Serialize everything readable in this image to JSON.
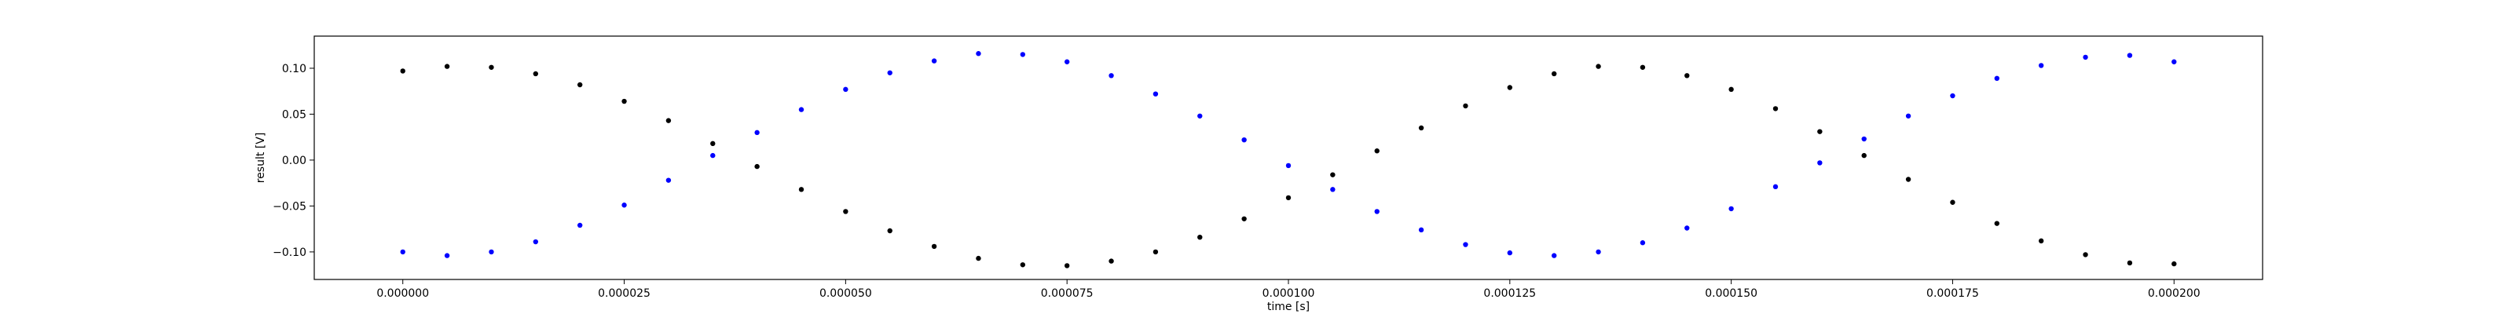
{
  "chart_data": {
    "type": "scatter",
    "title": "",
    "xlabel": "time [s]",
    "ylabel": "result [V]",
    "xlim": [
      -1e-05,
      0.00021
    ],
    "ylim": [
      -0.13,
      0.135
    ],
    "grid": false,
    "x_ticks": [
      0,
      2.5e-05,
      5e-05,
      7.5e-05,
      0.0001,
      0.000125,
      0.00015,
      0.000175,
      0.0002
    ],
    "x_tick_labels": [
      "0.000000",
      "0.000025",
      "0.000050",
      "0.000075",
      "0.000100",
      "0.000125",
      "0.000150",
      "0.000175",
      "0.000200"
    ],
    "y_ticks": [
      0.1,
      0.05,
      0.0,
      -0.05,
      -0.1
    ],
    "y_tick_labels": [
      "0.10",
      "0.05",
      "0.00",
      "−0.05",
      "−0.10"
    ],
    "series": [
      {
        "color": "#000000",
        "x": [
          0,
          5e-06,
          1e-05,
          1.5e-05,
          2e-05,
          2.5e-05,
          3e-05,
          3.5e-05,
          4e-05,
          4.5e-05,
          5e-05,
          5.5e-05,
          6e-05,
          6.5e-05,
          7e-05,
          7.5e-05,
          8e-05,
          8.5e-05,
          9e-05,
          9.5e-05,
          0.0001,
          0.000105,
          0.00011,
          0.000115,
          0.00012,
          0.000125,
          0.00013,
          0.000135,
          0.00014,
          0.000145,
          0.00015,
          0.000155,
          0.00016,
          0.000165,
          0.00017,
          0.000175,
          0.00018,
          0.000185,
          0.00019,
          0.000195,
          0.0002
        ],
        "y": [
          0.097,
          0.102,
          0.101,
          0.094,
          0.082,
          0.064,
          0.043,
          0.018,
          -0.007,
          -0.032,
          -0.056,
          -0.077,
          -0.094,
          -0.107,
          -0.114,
          -0.115,
          -0.11,
          -0.1,
          -0.084,
          -0.064,
          -0.041,
          -0.016,
          0.01,
          0.035,
          0.059,
          0.079,
          0.094,
          0.102,
          0.101,
          0.092,
          0.077,
          0.056,
          0.031,
          0.005,
          -0.021,
          -0.046,
          -0.069,
          -0.088,
          -0.103,
          -0.112,
          -0.113
        ]
      },
      {
        "color": "#0000ff",
        "x": [
          0,
          5e-06,
          1e-05,
          1.5e-05,
          2e-05,
          2.5e-05,
          3e-05,
          3.5e-05,
          4e-05,
          4.5e-05,
          5e-05,
          5.5e-05,
          6e-05,
          6.5e-05,
          7e-05,
          7.5e-05,
          8e-05,
          8.5e-05,
          9e-05,
          9.5e-05,
          0.0001,
          0.000105,
          0.00011,
          0.000115,
          0.00012,
          0.000125,
          0.00013,
          0.000135,
          0.00014,
          0.000145,
          0.00015,
          0.000155,
          0.00016,
          0.000165,
          0.00017,
          0.000175,
          0.00018,
          0.000185,
          0.00019,
          0.000195,
          0.0002
        ],
        "y": [
          -0.1,
          -0.104,
          -0.1,
          -0.089,
          -0.071,
          -0.049,
          -0.022,
          0.005,
          0.03,
          0.055,
          0.077,
          0.095,
          0.108,
          0.116,
          0.115,
          0.107,
          0.092,
          0.072,
          0.048,
          0.022,
          -0.006,
          -0.032,
          -0.056,
          -0.076,
          -0.092,
          -0.101,
          -0.104,
          -0.1,
          -0.09,
          -0.074,
          -0.053,
          -0.029,
          -0.003,
          0.023,
          0.048,
          0.07,
          0.089,
          0.103,
          0.112,
          0.114,
          0.107
        ]
      }
    ]
  }
}
